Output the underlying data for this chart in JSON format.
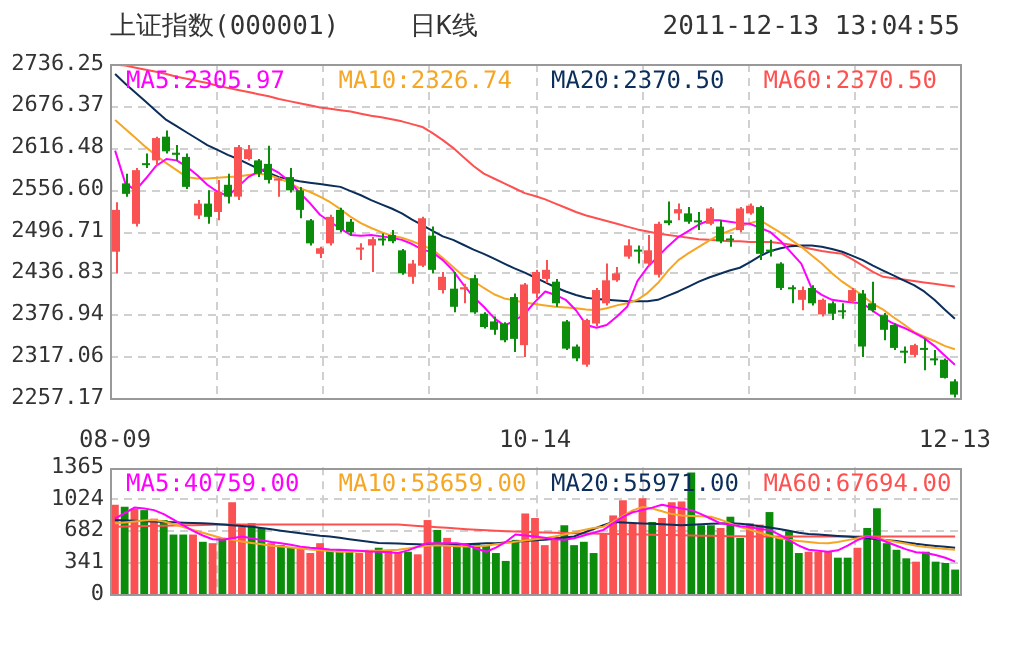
{
  "chart_data": [
    {
      "type": "candlestick",
      "title": "上证指数(000001)",
      "subtitle": "日K线",
      "annotations": [
        "2011-12-13 13:04:55"
      ],
      "categories": [
        "08-09",
        null,
        null,
        null,
        null,
        null,
        null,
        null,
        null,
        null,
        null,
        null,
        null,
        null,
        null,
        null,
        null,
        null,
        null,
        null,
        null,
        null,
        null,
        null,
        null,
        null,
        null,
        null,
        null,
        null,
        null,
        null,
        null,
        null,
        null,
        null,
        null,
        null,
        null,
        null,
        null,
        "10-14",
        null,
        null,
        null,
        null,
        null,
        null,
        null,
        null,
        null,
        null,
        null,
        null,
        null,
        null,
        null,
        null,
        null,
        null,
        null,
        null,
        null,
        null,
        null,
        null,
        null,
        null,
        null,
        null,
        null,
        null,
        null,
        null,
        null,
        null,
        null,
        null,
        null,
        null,
        null,
        null,
        "12-13"
      ],
      "ylim": [
        2257.17,
        2736.25
      ],
      "yticks": [
        2257.17,
        2317.06,
        2376.94,
        2436.83,
        2496.71,
        {
          "value": 2556.6,
          "label": "2556.60"
        },
        2616.48,
        2676.37,
        2736.25
      ],
      "grid": true,
      "legend": "top",
      "series": [
        {
          "ohlc": [
            [
              2467,
              2538,
              2436,
              2527
            ],
            [
              2565,
              2579,
              2546,
              2550
            ],
            [
              2507,
              2587,
              2503,
              2584
            ],
            [
              2594,
              2608,
              2587,
              2593
            ],
            [
              2598,
              2632,
              2590,
              2630
            ],
            [
              2632,
              2641,
              2608,
              2611
            ],
            [
              2609,
              2620,
              2598,
              2606
            ],
            [
              2603,
              2608,
              2557,
              2560
            ],
            [
              2519,
              2541,
              2514,
              2536
            ],
            [
              2536,
              2555,
              2507,
              2517
            ],
            [
              2524,
              2570,
              2512,
              2553
            ],
            [
              2563,
              2579,
              2536,
              2546
            ],
            [
              2546,
              2620,
              2541,
              2617
            ],
            [
              2600,
              2620,
              2598,
              2614
            ],
            [
              2598,
              2600,
              2574,
              2579
            ],
            [
              2593,
              2619,
              2565,
              2570
            ],
            [
              2569,
              2574,
              2546,
              2572
            ],
            [
              2574,
              2587,
              2552,
              2555
            ],
            [
              2555,
              2560,
              2515,
              2527
            ],
            [
              2512,
              2514,
              2476,
              2479
            ],
            [
              2464,
              2474,
              2458,
              2472
            ],
            [
              2479,
              2520,
              2476,
              2517
            ],
            [
              2527,
              2530,
              2495,
              2498
            ],
            [
              2510,
              2514,
              2490,
              2495
            ],
            [
              2470,
              2479,
              2455,
              2473
            ],
            [
              2476,
              2488,
              2438,
              2485
            ],
            [
              2486,
              2493,
              2476,
              2484
            ],
            [
              2491,
              2498,
              2479,
              2482
            ],
            [
              2469,
              2471,
              2434,
              2436
            ],
            [
              2431,
              2455,
              2421,
              2450
            ],
            [
              2447,
              2517,
              2445,
              2515
            ],
            [
              2490,
              2503,
              2436,
              2441
            ],
            [
              2412,
              2438,
              2407,
              2431
            ],
            [
              2414,
              2438,
              2380,
              2388
            ],
            [
              2413,
              2421,
              2393,
              2416
            ],
            [
              2429,
              2434,
              2378,
              2380
            ],
            [
              2378,
              2380,
              2357,
              2359
            ],
            [
              2367,
              2374,
              2348,
              2355
            ],
            [
              2364,
              2366,
              2337,
              2340
            ],
            [
              2402,
              2407,
              2323,
              2342
            ],
            [
              2333,
              2422,
              2316,
              2420
            ],
            [
              2407,
              2441,
              2400,
              2438
            ],
            [
              2428,
              2455,
              2422,
              2441
            ],
            [
              2424,
              2428,
              2388,
              2393
            ],
            [
              2367,
              2369,
              2326,
              2328
            ],
            [
              2331,
              2334,
              2310,
              2314
            ],
            [
              2305,
              2371,
              2302,
              2369
            ],
            [
              2364,
              2415,
              2360,
              2412
            ],
            [
              2393,
              2450,
              2390,
              2426
            ],
            [
              2426,
              2445,
              2424,
              2436
            ],
            [
              2460,
              2485,
              2457,
              2476
            ],
            [
              2470,
              2476,
              2450,
              2469
            ],
            [
              2450,
              2491,
              2447,
              2469
            ],
            [
              2434,
              2510,
              2430,
              2507
            ],
            [
              2512,
              2539,
              2505,
              2508
            ],
            [
              2522,
              2536,
              2512,
              2528
            ],
            [
              2522,
              2531,
              2507,
              2510
            ],
            [
              2512,
              2524,
              2498,
              2511
            ],
            [
              2507,
              2531,
              2505,
              2529
            ],
            [
              2503,
              2512,
              2479,
              2482
            ],
            [
              2486,
              2491,
              2474,
              2484
            ],
            [
              2498,
              2531,
              2495,
              2529
            ],
            [
              2522,
              2536,
              2520,
              2533
            ],
            [
              2531,
              2533,
              2455,
              2464
            ],
            [
              2470,
              2484,
              2460,
              2469
            ],
            [
              2450,
              2452,
              2412,
              2415
            ],
            [
              2416,
              2419,
              2393,
              2414
            ],
            [
              2398,
              2417,
              2383,
              2412
            ],
            [
              2415,
              2419,
              2390,
              2393
            ],
            [
              2377,
              2400,
              2374,
              2398
            ],
            [
              2393,
              2396,
              2369,
              2378
            ],
            [
              2383,
              2393,
              2371,
              2382
            ],
            [
              2396,
              2415,
              2393,
              2412
            ],
            [
              2407,
              2412,
              2316,
              2331
            ],
            [
              2393,
              2424,
              2380,
              2383
            ],
            [
              2376,
              2379,
              2340,
              2355
            ],
            [
              2362,
              2364,
              2326,
              2329
            ],
            [
              2325,
              2331,
              2307,
              2324
            ],
            [
              2319,
              2335,
              2316,
              2333
            ],
            [
              2329,
              2342,
              2297,
              2328
            ],
            [
              2314,
              2326,
              2304,
              2313
            ],
            [
              2312,
              2314,
              2285,
              2286
            ],
            [
              2281,
              2284,
              2258,
              2262
            ]
          ],
          "colors": [
            "#fa5252",
            "#0b8c0b",
            "#fa5252",
            "#0b8c0b",
            "#fa5252",
            "#0b8c0b",
            "#0b8c0b",
            "#0b8c0b",
            "#fa5252",
            "#0b8c0b",
            "#fa5252",
            "#0b8c0b",
            "#fa5252",
            "#fa5252",
            "#0b8c0b",
            "#0b8c0b",
            "#fa5252",
            "#0b8c0b",
            "#0b8c0b",
            "#0b8c0b",
            "#fa5252",
            "#fa5252",
            "#0b8c0b",
            "#0b8c0b",
            "#fa5252",
            "#fa5252",
            "#0b8c0b",
            "#0b8c0b",
            "#0b8c0b",
            "#fa5252",
            "#fa5252",
            "#0b8c0b",
            "#fa5252",
            "#0b8c0b",
            "#fa5252",
            "#0b8c0b",
            "#0b8c0b",
            "#0b8c0b",
            "#0b8c0b",
            "#0b8c0b",
            "#fa5252",
            "#fa5252",
            "#fa5252",
            "#0b8c0b",
            "#0b8c0b",
            "#0b8c0b",
            "#fa5252",
            "#fa5252",
            "#fa5252",
            "#fa5252",
            "#fa5252",
            "#0b8c0b",
            "#fa5252",
            "#fa5252",
            "#0b8c0b",
            "#fa5252",
            "#0b8c0b",
            "#0b8c0b",
            "#fa5252",
            "#0b8c0b",
            "#0b8c0b",
            "#fa5252",
            "#fa5252",
            "#0b8c0b",
            "#0b8c0b",
            "#0b8c0b",
            "#0b8c0b",
            "#fa5252",
            "#0b8c0b",
            "#fa5252",
            "#0b8c0b",
            "#0b8c0b",
            "#fa5252",
            "#0b8c0b",
            "#0b8c0b",
            "#0b8c0b",
            "#0b8c0b",
            "#0b8c0b",
            "#fa5252",
            "#0b8c0b",
            "#0b8c0b",
            "#0b8c0b",
            "#0b8c0b"
          ]
        },
        {
          "type": "line",
          "name": "MA5:2305.97",
          "color": "#ff00ff",
          "values": [
            2612,
            2565,
            2555,
            2572,
            2590,
            2600,
            2598,
            2589,
            2577,
            2563,
            2553,
            2547,
            2560,
            2574,
            2582,
            2588,
            2580,
            2568,
            2552,
            2537,
            2520,
            2510,
            2500,
            2491,
            2490,
            2491,
            2489,
            2487,
            2484,
            2478,
            2470,
            2466,
            2455,
            2440,
            2420,
            2402,
            2388,
            2372,
            2361,
            2368,
            2378,
            2395,
            2410,
            2405,
            2398,
            2383,
            2362,
            2358,
            2362,
            2374,
            2388,
            2425,
            2445,
            2460,
            2475,
            2488,
            2497,
            2506,
            2512,
            2512,
            2510,
            2508,
            2507,
            2501,
            2495,
            2482,
            2466,
            2450,
            2415,
            2405,
            2398,
            2396,
            2394,
            2393,
            2382,
            2372,
            2364,
            2358,
            2351,
            2343,
            2332,
            2318,
            2305
          ]
        },
        {
          "type": "line",
          "name": "MA10:2326.74",
          "color": "#f5a623",
          "values": [
            2656,
            2643,
            2630,
            2617,
            2605,
            2594,
            2584,
            2574,
            2572,
            2572,
            2573,
            2574,
            2575,
            2577,
            2579,
            2577,
            2572,
            2566,
            2558,
            2553,
            2546,
            2538,
            2528,
            2517,
            2508,
            2501,
            2495,
            2490,
            2487,
            2482,
            2476,
            2470,
            2458,
            2445,
            2432,
            2425,
            2415,
            2406,
            2400,
            2397,
            2394,
            2392,
            2390,
            2388,
            2387,
            2386,
            2384,
            2383,
            2386,
            2390,
            2393,
            2398,
            2408,
            2422,
            2440,
            2455,
            2465,
            2474,
            2483,
            2491,
            2497,
            2503,
            2508,
            2512,
            2503,
            2494,
            2484,
            2474,
            2462,
            2450,
            2436,
            2424,
            2414,
            2404,
            2392,
            2384,
            2373,
            2363,
            2352,
            2345,
            2339,
            2332,
            2327
          ]
        },
        {
          "type": "line",
          "name": "MA20:2370.50",
          "color": "#0b2e5a",
          "values": [
            2722,
            2708,
            2695,
            2682,
            2669,
            2656,
            2647,
            2638,
            2629,
            2620,
            2613,
            2606,
            2600,
            2593,
            2586,
            2580,
            2574,
            2571,
            2568,
            2566,
            2564,
            2562,
            2560,
            2554,
            2548,
            2541,
            2535,
            2529,
            2522,
            2513,
            2505,
            2497,
            2489,
            2484,
            2477,
            2470,
            2464,
            2457,
            2450,
            2443,
            2437,
            2430,
            2423,
            2416,
            2410,
            2405,
            2401,
            2399,
            2398,
            2397,
            2396,
            2396,
            2396,
            2398,
            2404,
            2410,
            2417,
            2424,
            2430,
            2435,
            2440,
            2444,
            2452,
            2461,
            2468,
            2472,
            2475,
            2476,
            2476,
            2474,
            2471,
            2467,
            2461,
            2455,
            2447,
            2440,
            2433,
            2426,
            2419,
            2410,
            2398,
            2384,
            2371
          ]
        },
        {
          "type": "line",
          "name": "MA60:2370.50",
          "color": "#ff5050",
          "values": [
            2735,
            2734,
            2731,
            2728,
            2725,
            2722,
            2718,
            2715,
            2712,
            2709,
            2705,
            2702,
            2699,
            2696,
            2693,
            2690,
            2686,
            2683,
            2680,
            2677,
            2674,
            2672,
            2670,
            2668,
            2665,
            2662,
            2660,
            2657,
            2654,
            2650,
            2646,
            2637,
            2627,
            2616,
            2603,
            2590,
            2579,
            2572,
            2565,
            2558,
            2551,
            2547,
            2542,
            2536,
            2530,
            2524,
            2519,
            2515,
            2511,
            2507,
            2503,
            2499,
            2496,
            2493,
            2491,
            2489,
            2487,
            2485,
            2484,
            2483,
            2482,
            2482,
            2481,
            2481,
            2481,
            2479,
            2477,
            2474,
            2471,
            2468,
            2466,
            2464,
            2456,
            2447,
            2438,
            2431,
            2429,
            2427,
            2425,
            2423,
            2421,
            2419,
            2417
          ]
        }
      ]
    },
    {
      "type": "bar",
      "tick_labels": "y",
      "categories": [
        null,
        null,
        null,
        null,
        null,
        null,
        null,
        null,
        null,
        null,
        null,
        null,
        null,
        null,
        null,
        null,
        null,
        null,
        null,
        null,
        null,
        null,
        null,
        null,
        null,
        null,
        null,
        null,
        null,
        null,
        null,
        null,
        null,
        null,
        null,
        null,
        null,
        null,
        null,
        null,
        null,
        null,
        null,
        null,
        null,
        null,
        null,
        null,
        null,
        null,
        null,
        null,
        null,
        null,
        null,
        null,
        null,
        null,
        null,
        null,
        null,
        null,
        null,
        null,
        null,
        null,
        null,
        null,
        null,
        null,
        null,
        null,
        null,
        null,
        null,
        null,
        null,
        null,
        null,
        null,
        null,
        null,
        null,
        null,
        null,
        null,
        null
      ],
      "ylim": [
        0,
        1365
      ],
      "yticks": [
        0,
        341,
        682,
        1024,
        1365
      ],
      "grid": true,
      "legend": "top",
      "series": [
        {
          "values": [
            960,
            938,
            917,
            903,
            811,
            796,
            640,
            640,
            640,
            562,
            547,
            604,
            988,
            725,
            761,
            711,
            547,
            526,
            498,
            498,
            441,
            547,
            476,
            476,
            455,
            441,
            476,
            498,
            476,
            441,
            455,
            427,
            796,
            690,
            604,
            547,
            526,
            547,
            526,
            441,
            356,
            583,
            867,
            818,
            526,
            619,
            740,
            526,
            562,
            441,
            654,
            846,
            1010,
            761,
            1031,
            775,
            818,
            988,
            995,
            1308,
            740,
            740,
            711,
            832,
            604,
            761,
            747,
            882,
            604,
            675,
            441,
            455,
            455,
            455,
            391,
            391,
            498,
            711,
            924,
            547,
            476,
            384,
            348,
            455,
            348,
            334,
            263
          ],
          "colors": [
            "#fa5252",
            "#0b8c0b",
            "#fa5252",
            "#0b8c0b",
            "#fa5252",
            "#0b8c0b",
            "#0b8c0b",
            "#0b8c0b",
            "#fa5252",
            "#0b8c0b",
            "#fa5252",
            "#0b8c0b",
            "#fa5252",
            "#fa5252",
            "#0b8c0b",
            "#0b8c0b",
            "#fa5252",
            "#0b8c0b",
            "#0b8c0b",
            "#fa5252",
            "#fa5252",
            "#fa5252",
            "#0b8c0b",
            "#0b8c0b",
            "#0b8c0b",
            "#fa5252",
            "#fa5252",
            "#0b8c0b",
            "#fa5252",
            "#fa5252",
            "#0b8c0b",
            "#fa5252",
            "#fa5252",
            "#0b8c0b",
            "#fa5252",
            "#0b8c0b",
            "#0b8c0b",
            "#0b8c0b",
            "#0b8c0b",
            "#0b8c0b",
            "#0b8c0b",
            "#0b8c0b",
            "#fa5252",
            "#fa5252",
            "#fa5252",
            "#fa5252",
            "#0b8c0b",
            "#0b8c0b",
            "#0b8c0b",
            "#0b8c0b",
            "#fa5252",
            "#fa5252",
            "#fa5252",
            "#fa5252",
            "#fa5252",
            "#0b8c0b",
            "#fa5252",
            "#fa5252",
            "#fa5252",
            "#0b8c0b",
            "#0b8c0b",
            "#0b8c0b",
            "#fa5252",
            "#0b8c0b",
            "#0b8c0b",
            "#fa5252",
            "#fa5252",
            "#0b8c0b",
            "#0b8c0b",
            "#0b8c0b",
            "#0b8c0b",
            "#fa5252",
            "#fa5252",
            "#fa5252",
            "#0b8c0b",
            "#0b8c0b",
            "#fa5252",
            "#0b8c0b",
            "#0b8c0b",
            "#0b8c0b",
            "#0b8c0b",
            "#0b8c0b",
            "#fa5252",
            "#0b8c0b",
            "#0b8c0b",
            "#0b8c0b",
            "#0b8c0b"
          ]
        },
        {
          "type": "line",
          "name": "MA5:40759.00",
          "color": "#ff00ff",
          "values": [
            811,
            870,
            930,
            920,
            903,
            860,
            800,
            740,
            680,
            630,
            590,
            583,
            600,
            619,
            600,
            580,
            560,
            547,
            530,
            510,
            498,
            490,
            480,
            476,
            470,
            465,
            458,
            455,
            450,
            441,
            470,
            510,
            547,
            547,
            547,
            547,
            530,
            490,
            455,
            500,
            560,
            640,
            630,
            619,
            605,
            590,
            583,
            600,
            630,
            660,
            690,
            760,
            830,
            880,
            903,
            930,
            960,
            940,
            920,
            903,
            860,
            810,
            761,
            745,
            730,
            720,
            700,
            690,
            640,
            580,
            520,
            476,
            465,
            455,
            470,
            520,
            580,
            619,
            600,
            560,
            520,
            480,
            450,
            441,
            420,
            390,
            348
          ]
        },
        {
          "type": "line",
          "name": "MA10:53659.00",
          "color": "#f5a623",
          "values": [
            761,
            770,
            780,
            790,
            796,
            780,
            750,
            720,
            690,
            660,
            630,
            600,
            583,
            565,
            550,
            535,
            520,
            512,
            500,
            490,
            480,
            470,
            462,
            455,
            455,
            458,
            462,
            466,
            470,
            476,
            490,
            505,
            520,
            526,
            520,
            515,
            512,
            515,
            520,
            535,
            550,
            562,
            575,
            590,
            600,
            619,
            640,
            665,
            690,
            710,
            725,
            780,
            840,
            900,
            938,
            920,
            890,
            860,
            846,
            840,
            836,
            832,
            800,
            760,
            720,
            690,
            660,
            630,
            600,
            583,
            570,
            560,
            550,
            547,
            560,
            580,
            600,
            619,
            600,
            580,
            560,
            540,
            520,
            505,
            495,
            485,
            476
          ]
        },
        {
          "type": "line",
          "name": "MA20:55971.00",
          "color": "#0b2e5a",
          "values": [
            796,
            792,
            788,
            784,
            780,
            776,
            772,
            768,
            764,
            761,
            755,
            748,
            741,
            733,
            725,
            710,
            696,
            682,
            668,
            654,
            640,
            626,
            619,
            605,
            590,
            575,
            562,
            550,
            547,
            543,
            539,
            535,
            531,
            528,
            526,
            530,
            535,
            540,
            545,
            547,
            555,
            562,
            570,
            578,
            583,
            595,
            608,
            619,
            660,
            700,
            740,
            775,
            770,
            765,
            760,
            755,
            750,
            745,
            740,
            745,
            750,
            755,
            760,
            761,
            755,
            745,
            730,
            715,
            700,
            680,
            660,
            645,
            640,
            632,
            625,
            618,
            610,
            600,
            590,
            580,
            570,
            555,
            540,
            528,
            518,
            508,
            498
          ]
        },
        {
          "type": "line",
          "name": "MA60:67694.00",
          "color": "#ff5050",
          "values": [
            725,
            727,
            729,
            731,
            733,
            735,
            737,
            739,
            741,
            743,
            745,
            747,
            747,
            747,
            747,
            747,
            747,
            747,
            747,
            747,
            747,
            747,
            747,
            747,
            747,
            747,
            747,
            747,
            747,
            747,
            740,
            733,
            726,
            719,
            712,
            705,
            698,
            692,
            686,
            680,
            675,
            672,
            669,
            666,
            663,
            660,
            657,
            654,
            652,
            650,
            648,
            646,
            644,
            642,
            640,
            638,
            636,
            634,
            632,
            630,
            628,
            626,
            624,
            622,
            621,
            620,
            619,
            619,
            619,
            619,
            619,
            619,
            619,
            619,
            619,
            619,
            619,
            619,
            619,
            619,
            619,
            619,
            619,
            619,
            619,
            619,
            619
          ]
        }
      ]
    }
  ]
}
